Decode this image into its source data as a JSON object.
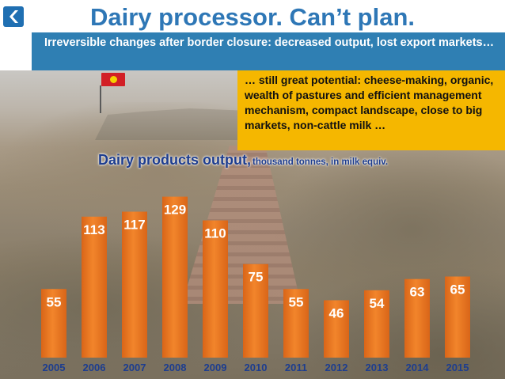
{
  "header": {
    "title": "Dairy processor. Can’t plan.",
    "subtitle": "Irreversible changes after border closure: decreased output, lost export markets…",
    "logo_icon": "arrow-logo-icon",
    "title_color": "#2e77b6",
    "subtitle_bg": "#2f7fb3"
  },
  "callout": {
    "text": "… still great potential: cheese-making, organic, wealth of pastures and efficient management mechanism, compact landscape, close to big markets, non-cattle milk …",
    "bg": "#f5b700"
  },
  "colors": {
    "bar": "#f2852b",
    "bar_dark": "#d96518",
    "label_on_bar": "#ffffff",
    "label_dark": "#1d3d8f",
    "axis_labels": "#1d3d8f"
  },
  "chart_data": {
    "type": "bar",
    "title": "Dairy products output,",
    "subtitle": "thousand tonnes, in milk equiv.",
    "categories": [
      "2005",
      "2006",
      "2007",
      "2008",
      "2009",
      "2010",
      "2011",
      "2012",
      "2013",
      "2014",
      "2015"
    ],
    "values": [
      55,
      113,
      117,
      129,
      110,
      75,
      55,
      46,
      54,
      63,
      65
    ],
    "ylim": [
      0,
      130
    ],
    "grid": false,
    "legend": "none"
  }
}
